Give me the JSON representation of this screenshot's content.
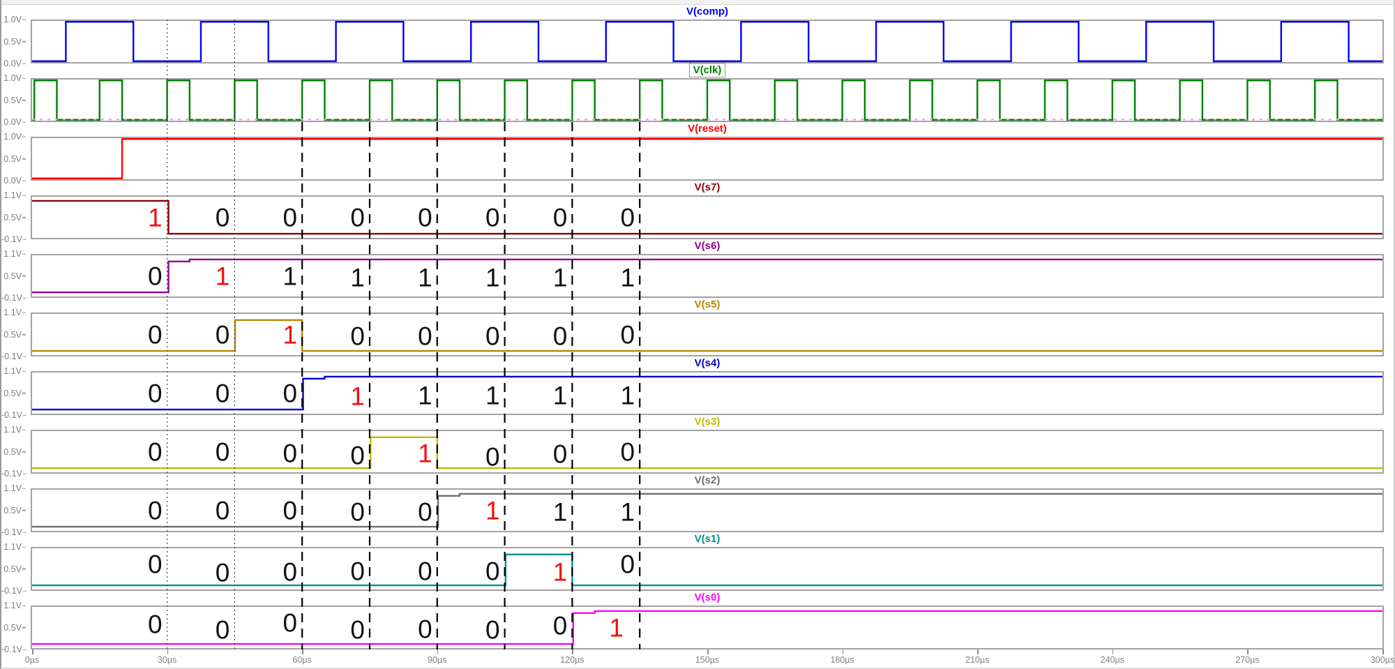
{
  "window": {
    "app": "waveform-viewer"
  },
  "chart_data": {
    "type": "line",
    "title": "",
    "xlabel": "time",
    "x_unit": "µs",
    "x_range": [
      0,
      300
    ],
    "x_ticks": [
      0,
      30,
      60,
      90,
      120,
      150,
      180,
      210,
      240,
      270,
      300
    ],
    "x_tick_labels": [
      "0µs",
      "30µs",
      "60µs",
      "90µs",
      "120µs",
      "150µs",
      "180µs",
      "210µs",
      "240µs",
      "270µs",
      "300µs"
    ],
    "grid": "pane-borders-only",
    "legend_position": "title-above-each-pane",
    "annotation_times_us": [
      27,
      42,
      57,
      72,
      87,
      102,
      117,
      132
    ],
    "vlines": {
      "dotted_us": [
        30,
        45
      ],
      "dashed_us": [
        60,
        75,
        90,
        105,
        120,
        135
      ]
    },
    "colors": {
      "grid": "#a2a2a2",
      "axis_text": "#808080",
      "bit_black": "#121212",
      "bit_red": "#fb0d0d"
    },
    "panes": [
      {
        "name": "comp",
        "label": "V(comp)",
        "color": "#0000ff",
        "selected": false,
        "y_ticks": [
          "1.0V",
          "0.5V",
          "0.0V"
        ],
        "v_min": 0.0,
        "v_max": 1.0,
        "steps": [
          [
            0,
            0
          ],
          [
            7.5,
            1
          ],
          [
            22.5,
            0
          ],
          [
            37.5,
            1
          ],
          [
            52.5,
            0
          ],
          [
            67.5,
            1
          ],
          [
            82.5,
            0
          ],
          [
            97.5,
            1
          ],
          [
            112.5,
            0
          ],
          [
            127.5,
            1
          ],
          [
            142.5,
            0
          ],
          [
            157.5,
            1
          ],
          [
            172.5,
            0
          ],
          [
            187.5,
            1
          ],
          [
            202.5,
            0
          ],
          [
            217.5,
            1
          ],
          [
            232.5,
            0
          ],
          [
            247.5,
            1
          ],
          [
            262.5,
            0
          ],
          [
            277.5,
            1
          ],
          [
            292.5,
            0
          ]
        ],
        "bits": []
      },
      {
        "name": "clk",
        "label": "V(clk)",
        "color": "#008000",
        "selected": true,
        "y_ticks": [
          "1.0V",
          "0.5V",
          "0.0V"
        ],
        "v_min": 0.0,
        "v_max": 1.0,
        "zero_overlay_color": "#ff8cff",
        "steps": [
          [
            0,
            0
          ],
          [
            0.5,
            1
          ],
          [
            5.5,
            0
          ],
          [
            15,
            1
          ],
          [
            20,
            0
          ],
          [
            30,
            1
          ],
          [
            35,
            0
          ],
          [
            45,
            1
          ],
          [
            50,
            0
          ],
          [
            60,
            1
          ],
          [
            65,
            0
          ],
          [
            75,
            1
          ],
          [
            80,
            0
          ],
          [
            90,
            1
          ],
          [
            95,
            0
          ],
          [
            105,
            1
          ],
          [
            110,
            0
          ],
          [
            120,
            1
          ],
          [
            125,
            0
          ],
          [
            135,
            1
          ],
          [
            140,
            0
          ],
          [
            150,
            1
          ],
          [
            155,
            0
          ],
          [
            165,
            1
          ],
          [
            170,
            0
          ],
          [
            180,
            1
          ],
          [
            185,
            0
          ],
          [
            195,
            1
          ],
          [
            200,
            0
          ],
          [
            210,
            1
          ],
          [
            215,
            0
          ],
          [
            225,
            1
          ],
          [
            230,
            0
          ],
          [
            240,
            1
          ],
          [
            245,
            0
          ],
          [
            255,
            1
          ],
          [
            260,
            0
          ],
          [
            270,
            1
          ],
          [
            275,
            0
          ],
          [
            285,
            1
          ],
          [
            290,
            0
          ]
        ],
        "bits": []
      },
      {
        "name": "reset",
        "label": "V(reset)",
        "color": "#ff0000",
        "selected": false,
        "y_ticks": [
          "1.0V",
          "0.5V",
          "0.0V"
        ],
        "v_min": 0.0,
        "v_max": 1.0,
        "steps": [
          [
            0,
            0
          ],
          [
            20,
            1
          ]
        ],
        "bits": []
      },
      {
        "name": "s7",
        "label": "V(s7)",
        "color": "#8b0000",
        "selected": false,
        "y_ticks": [
          "1.1V",
          "0.5V",
          "-0.1V"
        ],
        "v_min": -0.1,
        "v_max": 1.1,
        "steps": [
          [
            0,
            1
          ],
          [
            30.3,
            0
          ]
        ],
        "bits": [
          {
            "v": "1",
            "red": true,
            "dy": 0
          },
          {
            "v": "0",
            "red": false,
            "dy": 0
          },
          {
            "v": "0",
            "red": false,
            "dy": 0
          },
          {
            "v": "0",
            "red": false,
            "dy": 0
          },
          {
            "v": "0",
            "red": false,
            "dy": 0
          },
          {
            "v": "0",
            "red": false,
            "dy": 0
          },
          {
            "v": "0",
            "red": false,
            "dy": 0
          },
          {
            "v": "0",
            "red": false,
            "dy": 0
          }
        ]
      },
      {
        "name": "s6",
        "label": "V(s6)",
        "color": "#910091",
        "selected": false,
        "y_ticks": [
          "1.1V",
          "0.5V",
          "-0.1V"
        ],
        "v_min": -0.1,
        "v_max": 1.1,
        "steps": [
          [
            0,
            0
          ],
          [
            30.3,
            0.94
          ],
          [
            35,
            1
          ]
        ],
        "bits": [
          {
            "v": "0",
            "red": false,
            "dy": 0
          },
          {
            "v": "1",
            "red": true,
            "dy": 0
          },
          {
            "v": "1",
            "red": false,
            "dy": 0
          },
          {
            "v": "1",
            "red": false,
            "dy": 2
          },
          {
            "v": "1",
            "red": false,
            "dy": 2
          },
          {
            "v": "1",
            "red": false,
            "dy": 2
          },
          {
            "v": "1",
            "red": false,
            "dy": 2
          },
          {
            "v": "1",
            "red": false,
            "dy": 2
          }
        ]
      },
      {
        "name": "s5",
        "label": "V(s5)",
        "color": "#be8400",
        "selected": false,
        "y_ticks": [
          "1.1V",
          "0.5V",
          "-0.1V"
        ],
        "v_min": -0.1,
        "v_max": 1.1,
        "steps": [
          [
            0,
            0
          ],
          [
            45.1,
            0.94
          ],
          [
            60,
            0
          ]
        ],
        "bits": [
          {
            "v": "0",
            "red": false,
            "dy": 0
          },
          {
            "v": "0",
            "red": false,
            "dy": 0
          },
          {
            "v": "1",
            "red": true,
            "dy": 0
          },
          {
            "v": "0",
            "red": false,
            "dy": 2
          },
          {
            "v": "0",
            "red": false,
            "dy": 2
          },
          {
            "v": "0",
            "red": false,
            "dy": 2
          },
          {
            "v": "0",
            "red": false,
            "dy": 2
          },
          {
            "v": "0",
            "red": false,
            "dy": 0
          }
        ]
      },
      {
        "name": "s4",
        "label": "V(s4)",
        "color": "#0000c8",
        "selected": false,
        "y_ticks": [
          "1.1V",
          "0.5V",
          "-0.1V"
        ],
        "v_min": -0.1,
        "v_max": 1.1,
        "steps": [
          [
            0,
            0
          ],
          [
            60.2,
            0.94
          ],
          [
            65,
            1
          ]
        ],
        "bits": [
          {
            "v": "0",
            "red": false,
            "dy": 0
          },
          {
            "v": "0",
            "red": false,
            "dy": 0
          },
          {
            "v": "0",
            "red": false,
            "dy": 0
          },
          {
            "v": "1",
            "red": true,
            "dy": 4
          },
          {
            "v": "1",
            "red": false,
            "dy": 3
          },
          {
            "v": "1",
            "red": false,
            "dy": 3
          },
          {
            "v": "1",
            "red": false,
            "dy": 3
          },
          {
            "v": "1",
            "red": false,
            "dy": 3
          }
        ]
      },
      {
        "name": "s3",
        "label": "V(s3)",
        "color": "#bcbc00",
        "selected": false,
        "y_ticks": [
          "1.1V",
          "0.5V",
          "-0.1V"
        ],
        "v_min": -0.1,
        "v_max": 1.1,
        "steps": [
          [
            0,
            0
          ],
          [
            75.2,
            0.94
          ],
          [
            90,
            0
          ]
        ],
        "bits": [
          {
            "v": "0",
            "red": false,
            "dy": 0
          },
          {
            "v": "0",
            "red": false,
            "dy": 0
          },
          {
            "v": "0",
            "red": false,
            "dy": 2
          },
          {
            "v": "0",
            "red": false,
            "dy": 5
          },
          {
            "v": "1",
            "red": true,
            "dy": 2
          },
          {
            "v": "0",
            "red": false,
            "dy": 7
          },
          {
            "v": "0",
            "red": false,
            "dy": 3
          },
          {
            "v": "0",
            "red": false,
            "dy": 0
          }
        ]
      },
      {
        "name": "s2",
        "label": "V(s2)",
        "color": "#6e6e6e",
        "selected": false,
        "y_ticks": [
          "1.1V",
          "0.5V",
          "-0.1V"
        ],
        "v_min": -0.1,
        "v_max": 1.1,
        "steps": [
          [
            0,
            0
          ],
          [
            90.2,
            0.94
          ],
          [
            95,
            1
          ]
        ],
        "bits": [
          {
            "v": "0",
            "red": false,
            "dy": 0
          },
          {
            "v": "0",
            "red": false,
            "dy": 0
          },
          {
            "v": "0",
            "red": false,
            "dy": 0
          },
          {
            "v": "0",
            "red": false,
            "dy": 2
          },
          {
            "v": "0",
            "red": false,
            "dy": 2
          },
          {
            "v": "1",
            "red": true,
            "dy": 0
          },
          {
            "v": "1",
            "red": false,
            "dy": 2
          },
          {
            "v": "1",
            "red": false,
            "dy": 2
          }
        ]
      },
      {
        "name": "s1",
        "label": "V(s1)",
        "color": "#009090",
        "selected": false,
        "y_ticks": [
          "1.1V",
          "0.5V",
          "-0.1V"
        ],
        "v_min": -0.1,
        "v_max": 1.1,
        "steps": [
          [
            0,
            0
          ],
          [
            105.2,
            0.94
          ],
          [
            120,
            0
          ]
        ],
        "bits": [
          {
            "v": "0",
            "red": false,
            "dy": -7
          },
          {
            "v": "0",
            "red": false,
            "dy": 5
          },
          {
            "v": "0",
            "red": false,
            "dy": 4
          },
          {
            "v": "0",
            "red": false,
            "dy": 3
          },
          {
            "v": "0",
            "red": false,
            "dy": 3
          },
          {
            "v": "0",
            "red": false,
            "dy": 3
          },
          {
            "v": "1",
            "red": true,
            "dy": 4
          },
          {
            "v": "0",
            "red": false,
            "dy": -7
          }
        ]
      },
      {
        "name": "s0",
        "label": "V(s0)",
        "color": "#ff00ff",
        "selected": false,
        "y_ticks": [
          "1.1V",
          "0.5V",
          "-0.1V"
        ],
        "v_min": -0.1,
        "v_max": 1.1,
        "steps": [
          [
            0,
            0
          ],
          [
            120.2,
            0.94
          ],
          [
            125,
            1
          ]
        ],
        "bits": [
          {
            "v": "0",
            "red": false,
            "dy": -5
          },
          {
            "v": "0",
            "red": false,
            "dy": 3
          },
          {
            "v": "0",
            "red": false,
            "dy": -7
          },
          {
            "v": "0",
            "red": false,
            "dy": 3
          },
          {
            "v": "0",
            "red": false,
            "dy": 2
          },
          {
            "v": "0",
            "red": false,
            "dy": 3
          },
          {
            "v": "0",
            "red": false,
            "dy": -3
          },
          {
            "v": "1",
            "red": true,
            "dy": 0,
            "dt": -2.5
          }
        ]
      }
    ]
  }
}
